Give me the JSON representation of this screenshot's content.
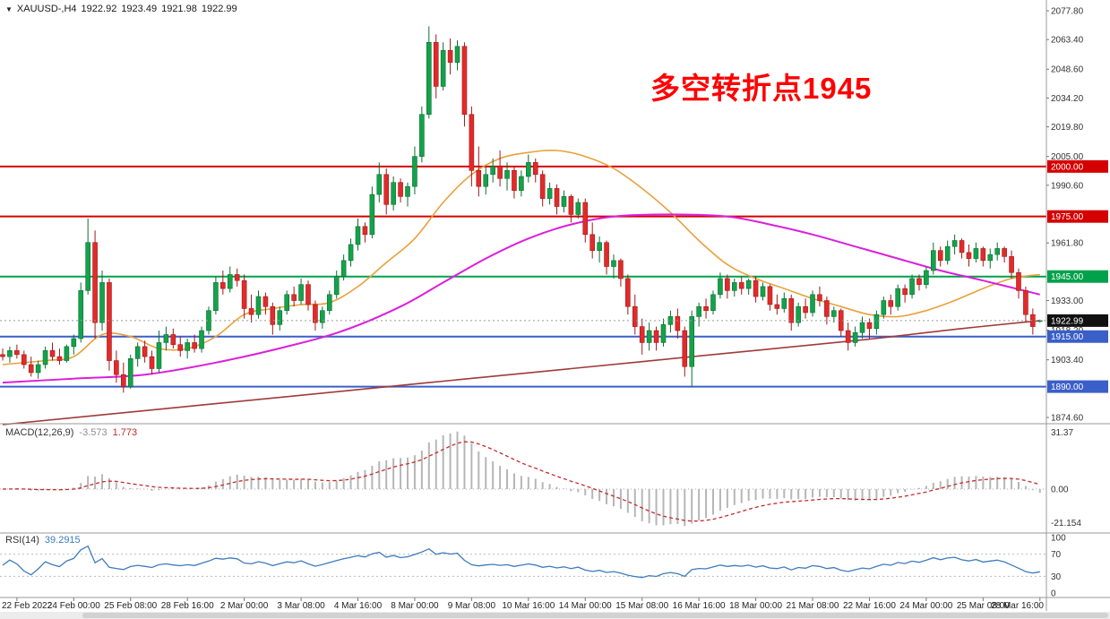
{
  "symbol": {
    "name": "XAUUSD-,H4",
    "open": "1922.92",
    "high": "1923.49",
    "low": "1921.98",
    "close": "1922.99"
  },
  "annotation": {
    "text": "多空转折点1945",
    "color": "#FF0000"
  },
  "indicators": {
    "macd": {
      "label": "MACD(12,26,9)",
      "value_main": "-3.573",
      "value_signal": "1.773",
      "axis": [
        "31.37",
        "0.00",
        "-21.154"
      ]
    },
    "rsi": {
      "label": "RSI(14)",
      "value": "39.2915",
      "axis": [
        "100",
        "70",
        "30",
        "0"
      ],
      "levels": [
        70,
        30
      ]
    }
  },
  "price_axis": {
    "ticks": [
      "2077.80",
      "2063.40",
      "2048.60",
      "2034.20",
      "2019.80",
      "2005.00",
      "1990.60",
      "1961.80",
      "1933.00",
      "1918.20",
      "1903.40",
      "1874.60"
    ],
    "current_price": "1922.99",
    "current_price_value": 1922.99
  },
  "hlines": [
    {
      "value": 2000.0,
      "label": "2000.00",
      "color": "#D40000"
    },
    {
      "value": 1975.0,
      "label": "1975.00",
      "color": "#D40000"
    },
    {
      "value": 1945.0,
      "label": "1945.00",
      "color": "#00A14B"
    },
    {
      "value": 1915.0,
      "label": "1915.00",
      "color": "#3A5FC8"
    },
    {
      "value": 1890.0,
      "label": "1890.00",
      "color": "#3A5FC8"
    }
  ],
  "time_axis": {
    "labels": [
      "22 Feb 2022",
      "24 Feb 00:00",
      "25 Feb 08:00",
      "28 Feb 16:00",
      "2 Mar 00:00",
      "3 Mar 08:00",
      "4 Mar 16:00",
      "8 Mar 00:00",
      "9 Mar 08:00",
      "10 Mar 16:00",
      "14 Mar 00:00",
      "15 Mar 08:00",
      "16 Mar 16:00",
      "18 Mar 00:00",
      "21 Mar 08:00",
      "22 Mar 16:00",
      "24 Mar 00:00",
      "25 Mar 08:00",
      "28 Mar 16:00"
    ]
  },
  "chart_data": {
    "type": "candlestick",
    "symbol": "XAUUSD",
    "timeframe": "H4",
    "price_range": [
      1874.6,
      2077.8
    ],
    "colors": {
      "bull": "#14A24A",
      "bull_border": "#0B6F32",
      "bear": "#E12B2B",
      "bear_border": "#A31616",
      "ma_fast": "#E9A13B",
      "ma_mid": "#DB1FDB",
      "ma_slow": "#A13A3A",
      "macd_hist": "#B6B6B6",
      "macd_signal": "#C22A2A",
      "rsi_line": "#3E7BBE",
      "current_line": "#9a9a9a"
    },
    "ohlc": [
      [
        1906,
        1909,
        1903,
        1905
      ],
      [
        1905,
        1910,
        1902,
        1908
      ],
      [
        1908,
        1911,
        1904,
        1906
      ],
      [
        1906,
        1908,
        1899,
        1901
      ],
      [
        1901,
        1905,
        1895,
        1897
      ],
      [
        1897,
        1903,
        1894,
        1901
      ],
      [
        1901,
        1910,
        1899,
        1908
      ],
      [
        1908,
        1912,
        1903,
        1905
      ],
      [
        1905,
        1909,
        1901,
        1903
      ],
      [
        1903,
        1911,
        1902,
        1910
      ],
      [
        1910,
        1916,
        1906,
        1914
      ],
      [
        1914,
        1942,
        1912,
        1938
      ],
      [
        1938,
        1974,
        1936,
        1962
      ],
      [
        1962,
        1968,
        1914,
        1922
      ],
      [
        1922,
        1948,
        1918,
        1942
      ],
      [
        1942,
        1944,
        1898,
        1903
      ],
      [
        1903,
        1908,
        1892,
        1896
      ],
      [
        1896,
        1902,
        1887,
        1890
      ],
      [
        1890,
        1906,
        1889,
        1904
      ],
      [
        1904,
        1912,
        1900,
        1910
      ],
      [
        1910,
        1913,
        1902,
        1905
      ],
      [
        1905,
        1908,
        1896,
        1899
      ],
      [
        1899,
        1918,
        1897,
        1912
      ],
      [
        1912,
        1920,
        1908,
        1916
      ],
      [
        1916,
        1919,
        1909,
        1911
      ],
      [
        1911,
        1915,
        1905,
        1908
      ],
      [
        1908,
        1914,
        1904,
        1912
      ],
      [
        1912,
        1916,
        1907,
        1909
      ],
      [
        1909,
        1920,
        1907,
        1918
      ],
      [
        1918,
        1930,
        1916,
        1928
      ],
      [
        1928,
        1945,
        1926,
        1942
      ],
      [
        1942,
        1948,
        1936,
        1939
      ],
      [
        1939,
        1950,
        1937,
        1946
      ],
      [
        1946,
        1949,
        1940,
        1943
      ],
      [
        1943,
        1946,
        1924,
        1929
      ],
      [
        1929,
        1936,
        1922,
        1926
      ],
      [
        1926,
        1938,
        1924,
        1935
      ],
      [
        1935,
        1937,
        1926,
        1930
      ],
      [
        1930,
        1932,
        1916,
        1921
      ],
      [
        1921,
        1930,
        1918,
        1928
      ],
      [
        1928,
        1938,
        1926,
        1936
      ],
      [
        1936,
        1940,
        1930,
        1933
      ],
      [
        1933,
        1944,
        1931,
        1941
      ],
      [
        1941,
        1943,
        1928,
        1931
      ],
      [
        1931,
        1933,
        1918,
        1922
      ],
      [
        1922,
        1930,
        1919,
        1928
      ],
      [
        1928,
        1938,
        1926,
        1936
      ],
      [
        1936,
        1948,
        1934,
        1945
      ],
      [
        1945,
        1956,
        1943,
        1953
      ],
      [
        1953,
        1964,
        1950,
        1961
      ],
      [
        1961,
        1974,
        1958,
        1970
      ],
      [
        1970,
        1972,
        1962,
        1966
      ],
      [
        1966,
        1990,
        1964,
        1986
      ],
      [
        1986,
        2002,
        1982,
        1996
      ],
      [
        1996,
        1999,
        1976,
        1981
      ],
      [
        1981,
        1995,
        1978,
        1992
      ],
      [
        1992,
        1994,
        1982,
        1985
      ],
      [
        1985,
        1992,
        1980,
        1990
      ],
      [
        1990,
        2010,
        1986,
        2005
      ],
      [
        2005,
        2030,
        2002,
        2026
      ],
      [
        2026,
        2070,
        2024,
        2062
      ],
      [
        2062,
        2066,
        2034,
        2040
      ],
      [
        2040,
        2062,
        2038,
        2058
      ],
      [
        2058,
        2064,
        2046,
        2052
      ],
      [
        2052,
        2063,
        2048,
        2060
      ],
      [
        2060,
        2062,
        2020,
        2026
      ],
      [
        2026,
        2030,
        1990,
        1998
      ],
      [
        1998,
        2010,
        1985,
        1990
      ],
      [
        1990,
        2000,
        1986,
        1996
      ],
      [
        1996,
        2004,
        1992,
        2000
      ],
      [
        2000,
        2008,
        1990,
        1994
      ],
      [
        1994,
        2002,
        1988,
        1998
      ],
      [
        1998,
        2000,
        1984,
        1988
      ],
      [
        1988,
        1998,
        1985,
        1995
      ],
      [
        1995,
        2006,
        1992,
        2002
      ],
      [
        2002,
        2004,
        1992,
        1996
      ],
      [
        1996,
        1998,
        1980,
        1984
      ],
      [
        1984,
        1992,
        1981,
        1989
      ],
      [
        1989,
        1991,
        1976,
        1980
      ],
      [
        1980,
        1988,
        1977,
        1985
      ],
      [
        1985,
        1986,
        1972,
        1976
      ],
      [
        1976,
        1984,
        1974,
        1982
      ],
      [
        1982,
        1984,
        1962,
        1966
      ],
      [
        1966,
        1972,
        1954,
        1958
      ],
      [
        1958,
        1965,
        1952,
        1962
      ],
      [
        1962,
        1963,
        1946,
        1950
      ],
      [
        1950,
        1956,
        1944,
        1953
      ],
      [
        1953,
        1954,
        1940,
        1944
      ],
      [
        1944,
        1946,
        1926,
        1930
      ],
      [
        1930,
        1936,
        1916,
        1920
      ],
      [
        1920,
        1924,
        1906,
        1912
      ],
      [
        1912,
        1922,
        1908,
        1918
      ],
      [
        1918,
        1920,
        1908,
        1912
      ],
      [
        1912,
        1924,
        1910,
        1921
      ],
      [
        1921,
        1928,
        1917,
        1925
      ],
      [
        1925,
        1929,
        1914,
        1918
      ],
      [
        1918,
        1920,
        1895,
        1900
      ],
      [
        1900,
        1928,
        1890,
        1925
      ],
      [
        1925,
        1932,
        1920,
        1930
      ],
      [
        1930,
        1934,
        1924,
        1928
      ],
      [
        1928,
        1938,
        1926,
        1936
      ],
      [
        1936,
        1947,
        1934,
        1944
      ],
      [
        1944,
        1946,
        1934,
        1938
      ],
      [
        1938,
        1944,
        1935,
        1942
      ],
      [
        1942,
        1945,
        1936,
        1939
      ],
      [
        1939,
        1944,
        1936,
        1943
      ],
      [
        1943,
        1945,
        1932,
        1935
      ],
      [
        1935,
        1942,
        1933,
        1940
      ],
      [
        1940,
        1941,
        1928,
        1931
      ],
      [
        1931,
        1936,
        1926,
        1929
      ],
      [
        1929,
        1937,
        1927,
        1934
      ],
      [
        1934,
        1936,
        1918,
        1922
      ],
      [
        1922,
        1932,
        1920,
        1930
      ],
      [
        1930,
        1934,
        1924,
        1927
      ],
      [
        1927,
        1938,
        1925,
        1936
      ],
      [
        1936,
        1940,
        1930,
        1933
      ],
      [
        1933,
        1935,
        1921,
        1925
      ],
      [
        1925,
        1930,
        1922,
        1928
      ],
      [
        1928,
        1929,
        1915,
        1918
      ],
      [
        1918,
        1922,
        1908,
        1912
      ],
      [
        1912,
        1920,
        1910,
        1917
      ],
      [
        1917,
        1925,
        1914,
        1922
      ],
      [
        1922,
        1924,
        1914,
        1919
      ],
      [
        1919,
        1928,
        1916,
        1926
      ],
      [
        1926,
        1935,
        1924,
        1933
      ],
      [
        1933,
        1936,
        1926,
        1930
      ],
      [
        1930,
        1941,
        1928,
        1939
      ],
      [
        1939,
        1941,
        1932,
        1936
      ],
      [
        1936,
        1946,
        1934,
        1944
      ],
      [
        1944,
        1946,
        1938,
        1941
      ],
      [
        1941,
        1950,
        1939,
        1948
      ],
      [
        1948,
        1962,
        1946,
        1958
      ],
      [
        1958,
        1960,
        1950,
        1953
      ],
      [
        1953,
        1963,
        1951,
        1960
      ],
      [
        1960,
        1966,
        1956,
        1963
      ],
      [
        1963,
        1964,
        1954,
        1957
      ],
      [
        1957,
        1961,
        1950,
        1954
      ],
      [
        1954,
        1962,
        1952,
        1959
      ],
      [
        1959,
        1960,
        1950,
        1953
      ],
      [
        1953,
        1959,
        1949,
        1956
      ],
      [
        1956,
        1962,
        1953,
        1959
      ],
      [
        1959,
        1960,
        1952,
        1955
      ],
      [
        1955,
        1958,
        1944,
        1947
      ],
      [
        1947,
        1949,
        1934,
        1938
      ],
      [
        1938,
        1940,
        1922,
        1926
      ],
      [
        1926,
        1929,
        1916,
        1920
      ],
      [
        1922.92,
        1923.49,
        1921.98,
        1922.99
      ]
    ],
    "ma": [
      {
        "name": "ma-fast",
        "color": "#E9A13B",
        "width": 1.6,
        "points": [
          [
            0,
            1901
          ],
          [
            6,
            1903
          ],
          [
            10,
            1905
          ],
          [
            14,
            1916
          ],
          [
            18,
            1915
          ],
          [
            22,
            1909
          ],
          [
            26,
            1909
          ],
          [
            30,
            1915
          ],
          [
            34,
            1926
          ],
          [
            38,
            1929
          ],
          [
            42,
            1931
          ],
          [
            46,
            1932
          ],
          [
            50,
            1940
          ],
          [
            54,
            1952
          ],
          [
            58,
            1964
          ],
          [
            62,
            1982
          ],
          [
            66,
            1996
          ],
          [
            70,
            2004
          ],
          [
            74,
            2007
          ],
          [
            78,
            2008
          ],
          [
            82,
            2005
          ],
          [
            86,
            1999
          ],
          [
            90,
            1989
          ],
          [
            94,
            1977
          ],
          [
            98,
            1963
          ],
          [
            102,
            1951
          ],
          [
            106,
            1944
          ],
          [
            110,
            1939
          ],
          [
            114,
            1934
          ],
          [
            118,
            1930
          ],
          [
            122,
            1926
          ],
          [
            126,
            1925
          ],
          [
            130,
            1928
          ],
          [
            134,
            1933
          ],
          [
            138,
            1939
          ],
          [
            142,
            1944
          ],
          [
            146,
            1946
          ]
        ]
      },
      {
        "name": "ma-mid",
        "color": "#DB1FDB",
        "width": 2,
        "points": [
          [
            0,
            1892
          ],
          [
            10,
            1894
          ],
          [
            20,
            1896
          ],
          [
            30,
            1902
          ],
          [
            40,
            1910
          ],
          [
            48,
            1918
          ],
          [
            56,
            1930
          ],
          [
            62,
            1942
          ],
          [
            68,
            1954
          ],
          [
            74,
            1964
          ],
          [
            80,
            1971
          ],
          [
            86,
            1975
          ],
          [
            94,
            1976
          ],
          [
            102,
            1975
          ],
          [
            108,
            1971
          ],
          [
            114,
            1966
          ],
          [
            120,
            1960
          ],
          [
            126,
            1954
          ],
          [
            132,
            1948
          ],
          [
            138,
            1943
          ],
          [
            146,
            1936
          ]
        ]
      },
      {
        "name": "ma-slow",
        "color": "#A13A3A",
        "width": 1.6,
        "points": [
          [
            0,
            1871
          ],
          [
            20,
            1878
          ],
          [
            40,
            1885
          ],
          [
            60,
            1892
          ],
          [
            80,
            1899
          ],
          [
            100,
            1906
          ],
          [
            120,
            1913
          ],
          [
            135,
            1919
          ],
          [
            146,
            1923
          ]
        ]
      }
    ]
  }
}
